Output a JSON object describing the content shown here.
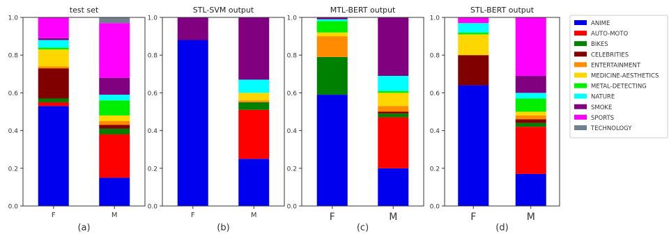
{
  "categories": [
    "ANIME",
    "AUTO-MOTO",
    "BIKES",
    "CELEBRITIES",
    "ENTERTAINMENT",
    "MEDICINE-AESTHETICS",
    "METAL-DETECTING",
    "NATURE",
    "SMOKE",
    "SPORTS",
    "TECHNOLOGY"
  ],
  "colors": [
    "#0000ee",
    "#ff0000",
    "#008000",
    "#800000",
    "#ff8c00",
    "#ffd700",
    "#00ee00",
    "#00ffff",
    "#800080",
    "#ff00ff",
    "#708090"
  ],
  "legend_position": "right",
  "chart_data": [
    {
      "type": "bar",
      "stacked": true,
      "title": "test set",
      "caption": "(a)",
      "x": [
        "F",
        "M"
      ],
      "ylim": [
        0,
        1.0
      ],
      "yticks": [
        "0.0",
        "0.2",
        "0.4",
        "0.6",
        "0.8",
        "1.0"
      ],
      "series": [
        {
          "name": "ANIME",
          "values": [
            0.53,
            0.15
          ]
        },
        {
          "name": "AUTO-MOTO",
          "values": [
            0.02,
            0.23
          ]
        },
        {
          "name": "BIKES",
          "values": [
            0.02,
            0.03
          ]
        },
        {
          "name": "CELEBRITIES",
          "values": [
            0.16,
            0.02
          ]
        },
        {
          "name": "ENTERTAINMENT",
          "values": [
            0.01,
            0.02
          ]
        },
        {
          "name": "MEDICINE-AESTHETICS",
          "values": [
            0.09,
            0.03
          ]
        },
        {
          "name": "METAL-DETECTING",
          "values": [
            0.01,
            0.08
          ]
        },
        {
          "name": "NATURE",
          "values": [
            0.04,
            0.03
          ]
        },
        {
          "name": "SMOKE",
          "values": [
            0.01,
            0.09
          ]
        },
        {
          "name": "SPORTS",
          "values": [
            0.11,
            0.29
          ]
        },
        {
          "name": "TECHNOLOGY",
          "values": [
            0.0,
            0.03
          ]
        }
      ]
    },
    {
      "type": "bar",
      "stacked": true,
      "title": "STL-SVM output",
      "caption": "(b)",
      "x": [
        "F",
        "M"
      ],
      "ylim": [
        0,
        1.0
      ],
      "yticks": [
        "0.0",
        "0.2",
        "0.4",
        "0.6",
        "0.8",
        "1.0"
      ],
      "series": [
        {
          "name": "ANIME",
          "values": [
            0.88,
            0.25
          ]
        },
        {
          "name": "AUTO-MOTO",
          "values": [
            0.0,
            0.26
          ]
        },
        {
          "name": "BIKES",
          "values": [
            0.0,
            0.04
          ]
        },
        {
          "name": "CELEBRITIES",
          "values": [
            0.0,
            0.0
          ]
        },
        {
          "name": "ENTERTAINMENT",
          "values": [
            0.0,
            0.01
          ]
        },
        {
          "name": "MEDICINE-AESTHETICS",
          "values": [
            0.0,
            0.04
          ]
        },
        {
          "name": "METAL-DETECTING",
          "values": [
            0.0,
            0.0
          ]
        },
        {
          "name": "NATURE",
          "values": [
            0.0,
            0.07
          ]
        },
        {
          "name": "SMOKE",
          "values": [
            0.12,
            0.33
          ]
        },
        {
          "name": "SPORTS",
          "values": [
            0.0,
            0.0
          ]
        },
        {
          "name": "TECHNOLOGY",
          "values": [
            0.0,
            0.0
          ]
        }
      ]
    },
    {
      "type": "bar",
      "stacked": true,
      "title": "MTL-BERT output",
      "caption": "(c)",
      "x": [
        "F",
        "M"
      ],
      "ylim": [
        0,
        1.0
      ],
      "yticks": [
        "0.0",
        "0.2",
        "0.4",
        "0.6",
        "0.8",
        "1.0"
      ],
      "series": [
        {
          "name": "ANIME",
          "values": [
            0.59,
            0.2
          ]
        },
        {
          "name": "AUTO-MOTO",
          "values": [
            0.0,
            0.27
          ]
        },
        {
          "name": "BIKES",
          "values": [
            0.2,
            0.02
          ]
        },
        {
          "name": "CELEBRITIES",
          "values": [
            0.0,
            0.01
          ]
        },
        {
          "name": "ENTERTAINMENT",
          "values": [
            0.11,
            0.03
          ]
        },
        {
          "name": "MEDICINE-AESTHETICS",
          "values": [
            0.02,
            0.07
          ]
        },
        {
          "name": "METAL-DETECTING",
          "values": [
            0.06,
            0.01
          ]
        },
        {
          "name": "NATURE",
          "values": [
            0.01,
            0.08
          ]
        },
        {
          "name": "SMOKE",
          "values": [
            0.01,
            0.31
          ]
        },
        {
          "name": "SPORTS",
          "values": [
            0.0,
            0.0
          ]
        },
        {
          "name": "TECHNOLOGY",
          "values": [
            0.0,
            0.0
          ]
        }
      ]
    },
    {
      "type": "bar",
      "stacked": true,
      "title": "STL-BERT output",
      "caption": "(d)",
      "x": [
        "F",
        "M"
      ],
      "ylim": [
        0,
        1.0
      ],
      "yticks": [
        "0.0",
        "0.2",
        "0.4",
        "0.6",
        "0.8",
        "1.0"
      ],
      "series": [
        {
          "name": "ANIME",
          "values": [
            0.64,
            0.17
          ]
        },
        {
          "name": "AUTO-MOTO",
          "values": [
            0.0,
            0.25
          ]
        },
        {
          "name": "BIKES",
          "values": [
            0.0,
            0.02
          ]
        },
        {
          "name": "CELEBRITIES",
          "values": [
            0.16,
            0.02
          ]
        },
        {
          "name": "ENTERTAINMENT",
          "values": [
            0.0,
            0.02
          ]
        },
        {
          "name": "MEDICINE-AESTHETICS",
          "values": [
            0.11,
            0.02
          ]
        },
        {
          "name": "METAL-DETECTING",
          "values": [
            0.01,
            0.07
          ]
        },
        {
          "name": "NATURE",
          "values": [
            0.05,
            0.03
          ]
        },
        {
          "name": "SMOKE",
          "values": [
            0.0,
            0.09
          ]
        },
        {
          "name": "SPORTS",
          "values": [
            0.03,
            0.31
          ]
        },
        {
          "name": "TECHNOLOGY",
          "values": [
            0.0,
            0.0
          ]
        }
      ]
    }
  ]
}
